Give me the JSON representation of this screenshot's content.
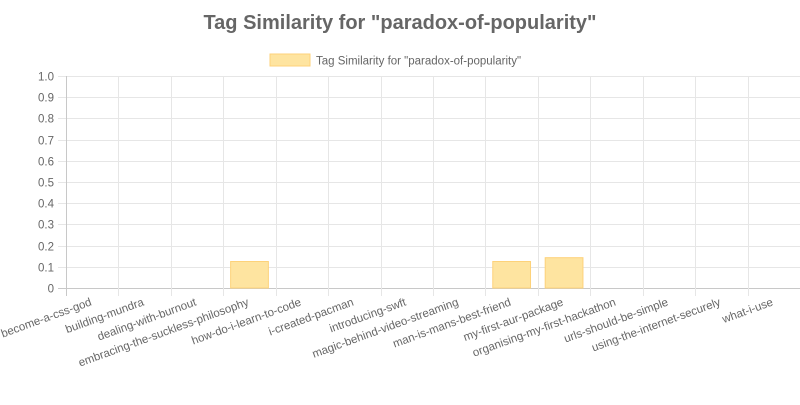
{
  "chart_data": {
    "type": "bar",
    "title": "Tag Similarity for \"paradox-of-popularity\"",
    "xlabel": "",
    "ylabel": "",
    "ylim": [
      0,
      1
    ],
    "yticks": [
      0,
      0.1,
      0.2,
      0.3,
      0.4,
      0.5,
      0.6,
      0.7,
      0.8,
      0.9,
      1.0
    ],
    "ytick_labels": [
      "0",
      "0.1",
      "0.2",
      "0.3",
      "0.4",
      "0.5",
      "0.6",
      "0.7",
      "0.8",
      "0.9",
      "1.0"
    ],
    "grid": true,
    "legend_position": "top",
    "categories": [
      "become-a-css-god",
      "building-mundra",
      "dealing-with-burnout",
      "embracing-the-suckless-philosophy",
      "how-do-i-learn-to-code",
      "i-created-pacman",
      "introducing-swft",
      "magic-behind-video-streaming",
      "man-is-mans-best-friend",
      "my-first-aur-package",
      "organising-my-first-hackathon",
      "urls-should-be-simple",
      "using-the-internet-securely",
      "what-i-use"
    ],
    "series": [
      {
        "name": "Tag Similarity for \"paradox-of-popularity\"",
        "values": [
          0,
          0,
          0,
          0.125,
          0,
          0,
          0,
          0,
          0.125,
          0.143,
          0,
          0,
          0,
          0
        ],
        "fill_color": "#fee4a0",
        "border_color": "#fdd27a"
      }
    ]
  }
}
